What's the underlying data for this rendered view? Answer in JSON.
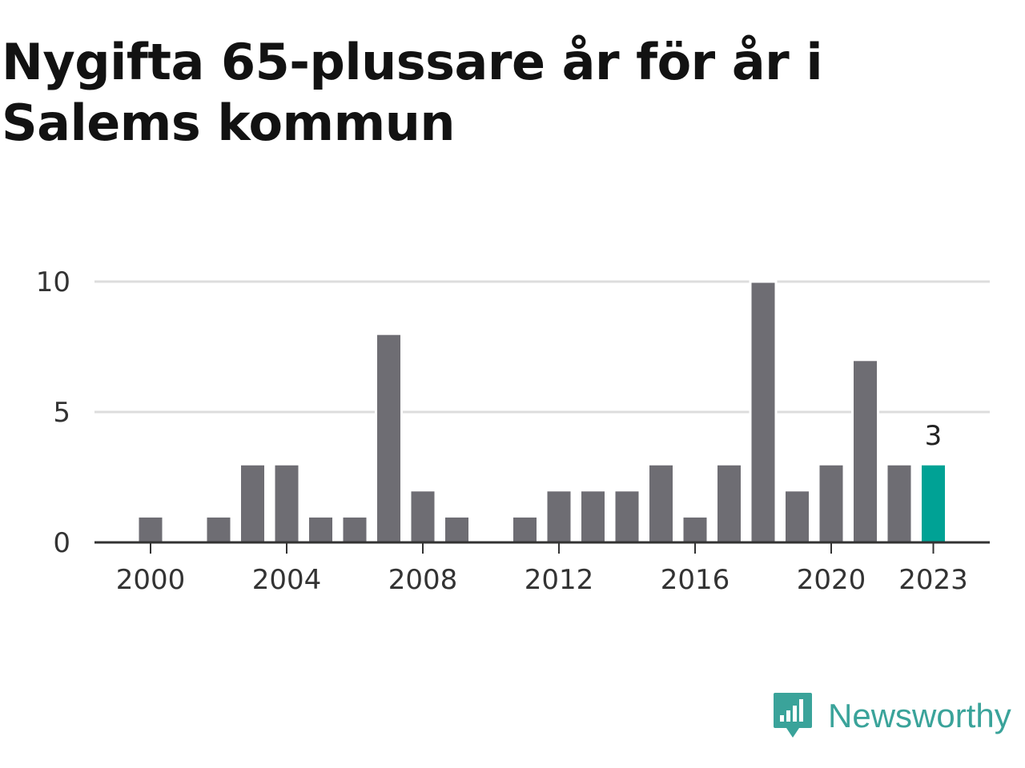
{
  "chart_data": {
    "type": "bar",
    "title": "Nygifta 65-plussare år för år i Salems kommun",
    "categories": [
      2000,
      2001,
      2002,
      2003,
      2004,
      2005,
      2006,
      2007,
      2008,
      2009,
      2010,
      2011,
      2012,
      2013,
      2014,
      2015,
      2016,
      2017,
      2018,
      2019,
      2020,
      2021,
      2022,
      2023
    ],
    "values": [
      1,
      0,
      1,
      3,
      3,
      1,
      1,
      8,
      2,
      1,
      0,
      1,
      2,
      2,
      2,
      3,
      1,
      3,
      10,
      2,
      3,
      7,
      3,
      3
    ],
    "x_tick_labels": [
      "2000",
      "2004",
      "2008",
      "2012",
      "2016",
      "2020",
      "2023"
    ],
    "y_ticks": [
      0,
      5,
      10
    ],
    "ylim": [
      0,
      10
    ],
    "xlabel": "",
    "ylabel": "",
    "grid": true,
    "highlight": {
      "category": 2023,
      "label": "3"
    },
    "colors": {
      "bar": "#6e6d73",
      "highlight": "#00a295",
      "grid": "#dddddd",
      "axis": "#333333"
    }
  },
  "brand": {
    "name": "Newsworthy",
    "icon": "newsworthy-logo-icon",
    "color": "#3aa39a"
  }
}
